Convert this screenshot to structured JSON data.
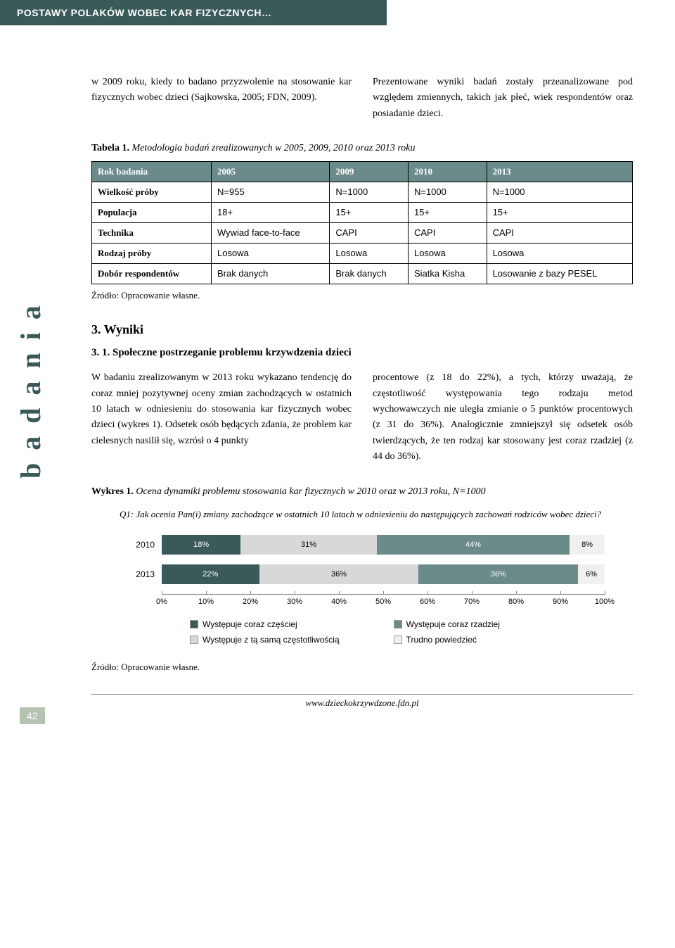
{
  "header": "POSTAWY POLAKÓW WOBEC KAR FIZYCZNYCH…",
  "side_label": "badania",
  "intro": {
    "left": "w 2009 roku, kiedy to badano przyzwolenie na stosowanie kar fizycznych wobec dzieci (Sajkowska, 2005; FDN, 2009).",
    "right": "Prezentowane wyniki badań zostały przeanalizowane pod względem zmiennych, takich jak płeć, wiek respondentów oraz posiadanie dzieci."
  },
  "table": {
    "caption_label": "Tabela 1.",
    "caption_text": "Metodologia badań zrealizowanych w 2005, 2009, 2010 oraz 2013 roku",
    "columns": [
      "Rok badania",
      "2005",
      "2009",
      "2010",
      "2013"
    ],
    "rows": [
      [
        "Wielkość próby",
        "N=955",
        "N=1000",
        "N=1000",
        "N=1000"
      ],
      [
        "Populacja",
        "18+",
        "15+",
        "15+",
        "15+"
      ],
      [
        "Technika",
        "Wywiad face-to-face",
        "CAPI",
        "CAPI",
        "CAPI"
      ],
      [
        "Rodzaj próby",
        "Losowa",
        "Losowa",
        "Losowa",
        "Losowa"
      ],
      [
        "Dobór respondentów",
        "Brak danych",
        "Brak danych",
        "Siatka Kisha",
        "Losowanie z bazy PESEL"
      ]
    ],
    "source": "Źródło: Opracowanie własne."
  },
  "section": {
    "heading": "3. Wyniki",
    "subheading": "3. 1. Społeczne postrzeganie problemu krzywdzenia dzieci"
  },
  "body": {
    "left": "W badaniu zrealizowanym w 2013 roku wykazano tendencję do coraz mniej pozytywnej oceny zmian zachodzących w ostatnich 10 latach w odniesieniu do stosowania kar fizycznych wobec dzieci (wykres 1). Odsetek osób będących zdania, że problem kar cielesnych nasilił się, wzrósł o 4 punkty",
    "right": "procentowe (z 18 do 22%), a tych, którzy uważają, że częstotliwość występowania tego rodzaju metod wychowawczych nie uległa zmianie o 5 punktów procentowych (z 31 do 36%). Analogicznie zmniejszył się odsetek osób twierdzących, że ten rodzaj kar stosowany jest coraz rzadziej (z 44 do 36%)."
  },
  "chart": {
    "label": "Wykres 1.",
    "title": "Ocena dynamiki problemu stosowania kar fizycznych w 2010 oraz w 2013 roku, N=1000",
    "question": "Q1: Jak ocenia Pan(i) zmiany zachodzące w ostatnich 10 latach w odniesieniu do następujących zachowań rodziców wobec dzieci?",
    "type": "stacked-bar-horizontal",
    "categories": [
      "2010",
      "2013"
    ],
    "series": [
      {
        "name": "Występuje coraz częściej",
        "color": "#3a5a5a",
        "values": [
          18,
          22
        ],
        "text_color": "#ffffff"
      },
      {
        "name": "Występuje z tą samą częstotliwością",
        "color": "#d8d8d8",
        "values": [
          31,
          36
        ],
        "text_color": "#000000"
      },
      {
        "name": "Występuje coraz rzadziej",
        "color": "#6b8a8a",
        "values": [
          44,
          36
        ],
        "text_color": "#ffffff"
      },
      {
        "name": "Trudno powiedzieć",
        "color": "#f0f0f0",
        "values": [
          8,
          6
        ],
        "text_color": "#000000"
      }
    ],
    "xaxis": {
      "min": 0,
      "max": 100,
      "step": 10,
      "suffix": "%"
    },
    "legend_order": [
      0,
      2,
      1,
      3
    ],
    "source": "Źródło: Opracowanie własne."
  },
  "footer": {
    "page": "42",
    "url": "www.dzieckokrzywdzone.fdn.pl"
  }
}
